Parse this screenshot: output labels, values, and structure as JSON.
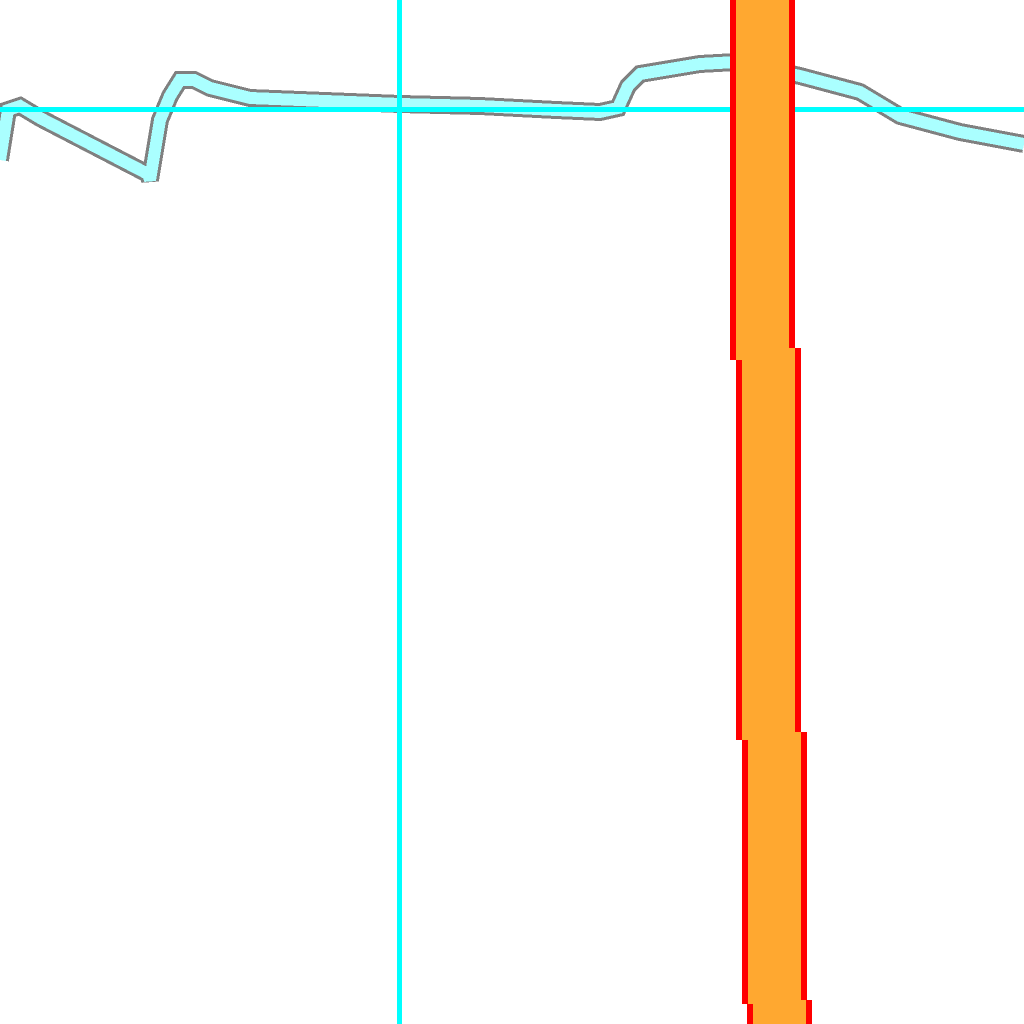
{
  "map": {
    "background_color": "#ffffff",
    "features": {
      "waterway": {
        "kind": "stream",
        "fill_color": "#aaffff",
        "outline_color": "#808080"
      },
      "grid_lines": {
        "kind": "reference-line",
        "color": "#00ffff"
      },
      "road": {
        "kind": "major-road",
        "fill_color": "#ffa830",
        "casing_color": "#ff0000"
      }
    },
    "labels": []
  }
}
